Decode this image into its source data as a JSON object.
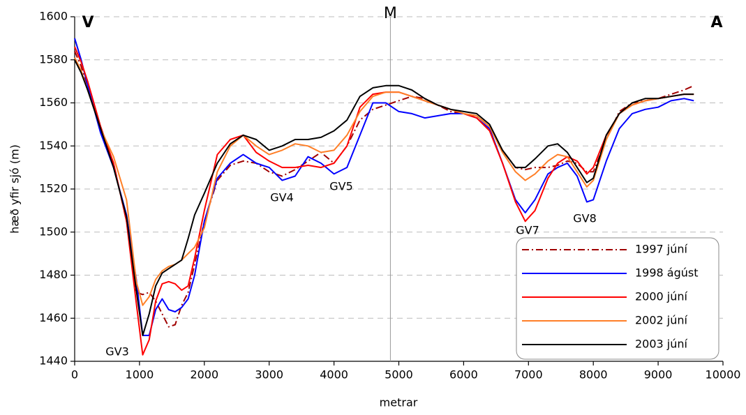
{
  "chart_data": {
    "type": "line",
    "xlabel": "metrar",
    "ylabel": "hæð yfir sjó (m)",
    "xlim": [
      0,
      10000
    ],
    "ylim": [
      1440,
      1600
    ],
    "xticks": [
      0,
      1000,
      2000,
      3000,
      4000,
      5000,
      6000,
      7000,
      8000,
      9000,
      10000
    ],
    "yticks": [
      1440,
      1460,
      1480,
      1500,
      1520,
      1540,
      1560,
      1580,
      1600
    ],
    "grid": true,
    "legend": "lower right",
    "reference_line": {
      "label": "M",
      "x": 4870
    },
    "annotations": [
      "V",
      "A",
      "GV3",
      "GV4",
      "GV5",
      "GV7",
      "GV8"
    ],
    "x": [
      0,
      100,
      200,
      400,
      600,
      800,
      950,
      1050,
      1150,
      1250,
      1350,
      1450,
      1550,
      1650,
      1750,
      1850,
      2000,
      2200,
      2400,
      2600,
      2800,
      3000,
      3200,
      3400,
      3600,
      3800,
      4000,
      4200,
      4400,
      4600,
      4800,
      5000,
      5200,
      5400,
      5600,
      5800,
      6000,
      6200,
      6400,
      6600,
      6800,
      6950,
      7100,
      7300,
      7450,
      7600,
      7750,
      7900,
      8000,
      8200,
      8400,
      8600,
      8800,
      9000,
      9200,
      9400,
      9550
    ],
    "series": [
      {
        "name": "1997 júní",
        "color": "#a00000",
        "style": "dashdot",
        "values": [
          1584,
          1577,
          1567,
          1548,
          1532,
          1505,
          1472,
          1471,
          1472,
          1468,
          1462,
          1456,
          1457,
          1466,
          1472,
          1485,
          1505,
          1524,
          1531,
          1533,
          1532,
          1528,
          1526,
          1529,
          1533,
          1537,
          1532,
          1540,
          1552,
          1557,
          1559,
          1561,
          1563,
          1562,
          1559,
          1556,
          1555,
          1554,
          1549,
          1538,
          1530,
          1529,
          1530,
          1530,
          1531,
          1533,
          1532,
          1528,
          1528,
          1543,
          1556,
          1560,
          1561,
          1562,
          1564,
          1566,
          1568
        ]
      },
      {
        "name": "1998 ágúst",
        "color": "#0000ff",
        "style": "solid",
        "values": [
          1590,
          1580,
          1568,
          1546,
          1530,
          1508,
          1478,
          1452,
          1452,
          1464,
          1469,
          1464,
          1463,
          1465,
          1469,
          1480,
          1505,
          1525,
          1532,
          1536,
          1532,
          1530,
          1524,
          1526,
          1535,
          1532,
          1527,
          1530,
          1545,
          1560,
          1560,
          1556,
          1555,
          1553,
          1554,
          1555,
          1555,
          1553,
          1548,
          1532,
          1515,
          1509,
          1515,
          1527,
          1530,
          1532,
          1526,
          1514,
          1515,
          1533,
          1548,
          1555,
          1557,
          1558,
          1561,
          1562,
          1561
        ]
      },
      {
        "name": "2000 júní",
        "color": "#ff0000",
        "style": "solid",
        "values": [
          1586,
          1579,
          1570,
          1549,
          1532,
          1505,
          1467,
          1443,
          1450,
          1468,
          1476,
          1477,
          1476,
          1473,
          1475,
          1488,
          1510,
          1536,
          1543,
          1545,
          1537,
          1533,
          1530,
          1530,
          1531,
          1530,
          1532,
          1540,
          1558,
          1564,
          1565,
          1565,
          1563,
          1561,
          1559,
          1557,
          1555,
          1553,
          1547,
          1532,
          1514,
          1505,
          1510,
          1525,
          1532,
          1535,
          1533,
          1527,
          1530,
          1545,
          1555,
          1559,
          1561,
          1562,
          1563,
          1564,
          1564
        ]
      },
      {
        "name": "2002 júní",
        "color": "#ff7f27",
        "style": "solid",
        "values": [
          1581,
          1575,
          1566,
          1548,
          1535,
          1515,
          1477,
          1466,
          1470,
          1478,
          1482,
          1484,
          1485,
          1487,
          1490,
          1493,
          1502,
          1528,
          1540,
          1545,
          1540,
          1536,
          1538,
          1541,
          1540,
          1537,
          1538,
          1545,
          1556,
          1563,
          1565,
          1565,
          1563,
          1561,
          1559,
          1557,
          1555,
          1554,
          1549,
          1537,
          1528,
          1524,
          1527,
          1533,
          1536,
          1535,
          1528,
          1521,
          1524,
          1543,
          1555,
          1559,
          1561,
          1562,
          1563,
          1564,
          1564
        ]
      },
      {
        "name": "2003 júní",
        "color": "#000000",
        "style": "solid",
        "values": [
          1580,
          1574,
          1566,
          1548,
          1530,
          1507,
          1473,
          1452,
          1462,
          1475,
          1481,
          1483,
          1485,
          1487,
          1497,
          1508,
          1518,
          1532,
          1541,
          1545,
          1543,
          1538,
          1540,
          1543,
          1543,
          1544,
          1547,
          1552,
          1563,
          1567,
          1568,
          1568,
          1566,
          1562,
          1559,
          1557,
          1556,
          1555,
          1550,
          1538,
          1530,
          1530,
          1534,
          1540,
          1541,
          1537,
          1530,
          1523,
          1525,
          1545,
          1555,
          1560,
          1562,
          1562,
          1563,
          1564,
          1564
        ]
      }
    ]
  }
}
